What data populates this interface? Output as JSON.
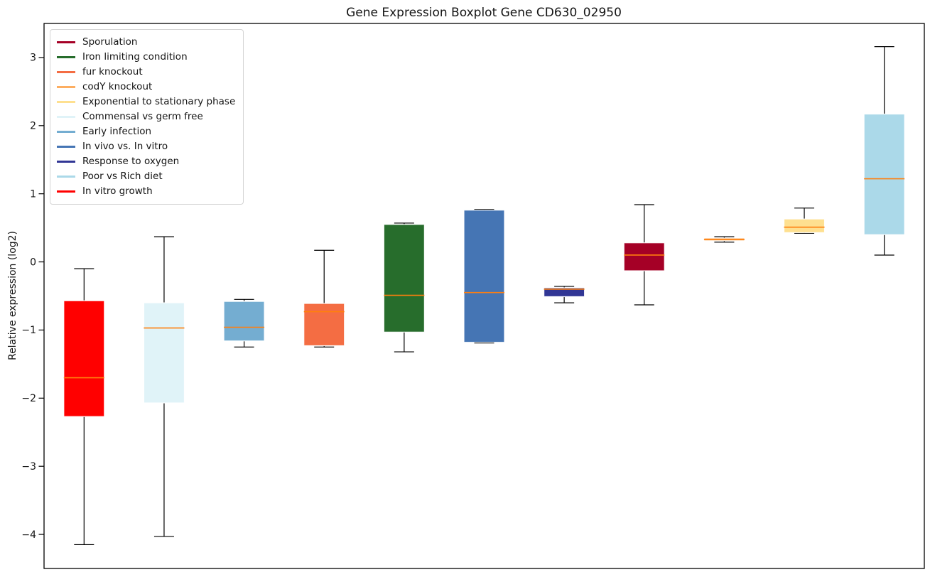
{
  "figure": {
    "background": "#ffffff"
  },
  "chart_data": {
    "type": "boxplot",
    "title": "Gene Expression Boxplot Gene CD630_02950",
    "xlabel": "",
    "ylabel": "Relative expression (log2)",
    "ylim": [
      -4.5,
      3.5
    ],
    "yticks": [
      3,
      2,
      1,
      0,
      -1,
      -2,
      -3,
      -4
    ],
    "grid": false,
    "legend_position": "upper left",
    "median_color": "#ff7f0e",
    "whisker_color": "#000000",
    "legend_order": [
      "Sporulation",
      "Iron limiting condition",
      "fur knockout",
      "codY knockout",
      "Exponential to stationary phase",
      "Commensal vs germ free",
      "Early infection",
      "In vivo vs. In vitro",
      "Response to oxygen",
      "Poor vs Rich diet",
      "In vitro growth"
    ],
    "series": [
      {
        "name": "In vitro growth",
        "color": "#ff0000",
        "whisker_low": -4.15,
        "q1": -2.27,
        "median": -1.7,
        "q3": -0.57,
        "whisker_high": -0.1
      },
      {
        "name": "Commensal vs germ free",
        "color": "#e0f3f8",
        "whisker_low": -4.03,
        "q1": -2.07,
        "median": -0.97,
        "q3": -0.6,
        "whisker_high": 0.37
      },
      {
        "name": "Early infection",
        "color": "#74add1",
        "whisker_low": -1.25,
        "q1": -1.16,
        "median": -0.96,
        "q3": -0.58,
        "whisker_high": -0.55
      },
      {
        "name": "fur knockout",
        "color": "#f46d43",
        "whisker_low": -1.25,
        "q1": -1.23,
        "median": -0.73,
        "q3": -0.61,
        "whisker_high": 0.17
      },
      {
        "name": "Iron limiting condition",
        "color": "#276d2c",
        "whisker_low": -1.32,
        "q1": -1.03,
        "median": -0.49,
        "q3": 0.55,
        "whisker_high": 0.57
      },
      {
        "name": "In vivo vs. In vitro",
        "color": "#4575b4",
        "whisker_low": -1.19,
        "q1": -1.18,
        "median": -0.45,
        "q3": 0.76,
        "whisker_high": 0.77
      },
      {
        "name": "Response to oxygen",
        "color": "#313695",
        "whisker_low": -0.6,
        "q1": -0.51,
        "median": -0.4,
        "q3": -0.38,
        "whisker_high": -0.36
      },
      {
        "name": "Sporulation",
        "color": "#a50026",
        "whisker_low": -0.63,
        "q1": -0.13,
        "median": 0.1,
        "q3": 0.28,
        "whisker_high": 0.84
      },
      {
        "name": "codY knockout",
        "color": "#fdae61",
        "whisker_low": 0.29,
        "q1": 0.31,
        "median": 0.33,
        "q3": 0.35,
        "whisker_high": 0.37
      },
      {
        "name": "Exponential to stationary phase",
        "color": "#fee090",
        "whisker_low": 0.42,
        "q1": 0.43,
        "median": 0.51,
        "q3": 0.63,
        "whisker_high": 0.79
      },
      {
        "name": "Poor vs Rich diet",
        "color": "#abd9e9",
        "whisker_low": 0.1,
        "q1": 0.4,
        "median": 1.22,
        "q3": 2.17,
        "whisker_high": 3.16
      }
    ]
  }
}
